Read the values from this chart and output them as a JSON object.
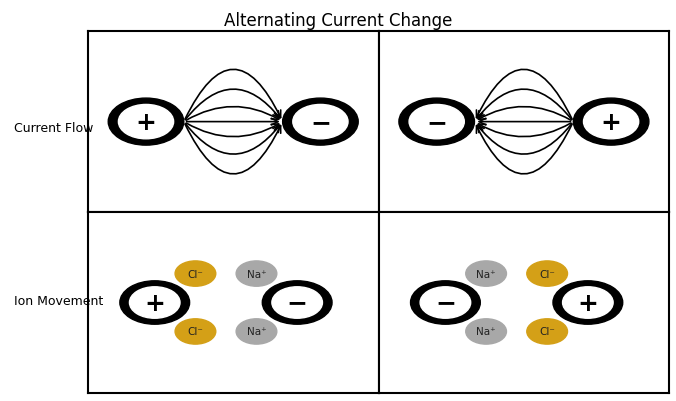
{
  "title": "Alternating Current Change",
  "row_labels": [
    "Current Flow",
    "Ion Movement"
  ],
  "background_color": "#ffffff",
  "electrode_outer_color": "#000000",
  "electrode_inner_color": "#ffffff",
  "arrow_color": "#000000",
  "cl_color": "#D4A017",
  "na_color": "#A8A8A8",
  "grid_color": "#000000",
  "title_fontsize": 12,
  "label_fontsize": 9
}
